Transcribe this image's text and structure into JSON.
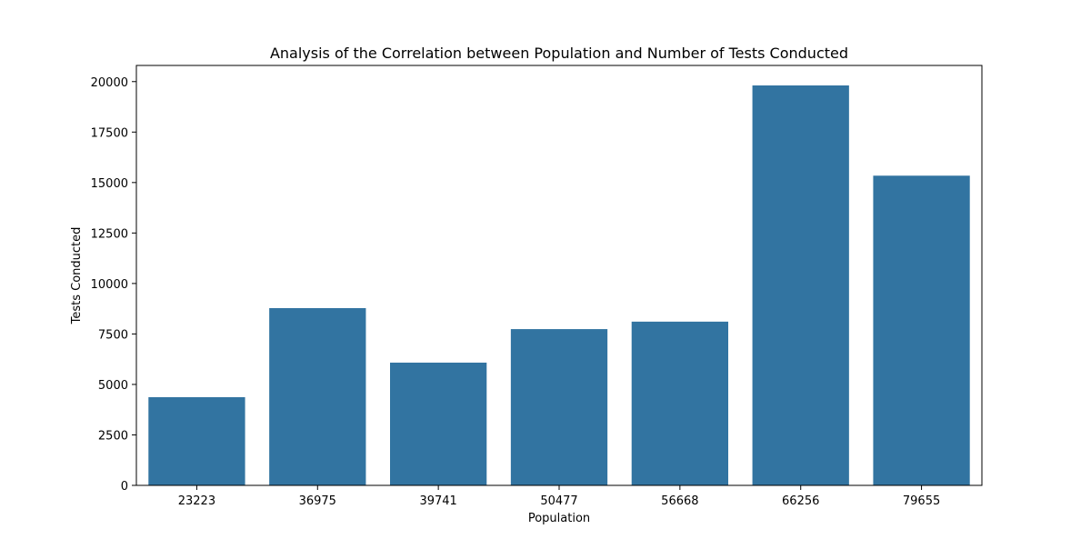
{
  "chart_data": {
    "type": "bar",
    "title": "Analysis of the Correlation between Population and Number of Tests Conducted",
    "xlabel": "Population",
    "ylabel": "Tests Conducted",
    "categories": [
      "23223",
      "36975",
      "39741",
      "50477",
      "56668",
      "66256",
      "79655"
    ],
    "values": [
      4370,
      8780,
      6080,
      7740,
      8110,
      19810,
      15340
    ],
    "ylim": [
      0,
      20800
    ],
    "yticks": [
      0,
      2500,
      5000,
      7500,
      10000,
      12500,
      15000,
      17500,
      20000
    ],
    "grid": false,
    "legend": "none",
    "bar_color": "#3274a1"
  }
}
